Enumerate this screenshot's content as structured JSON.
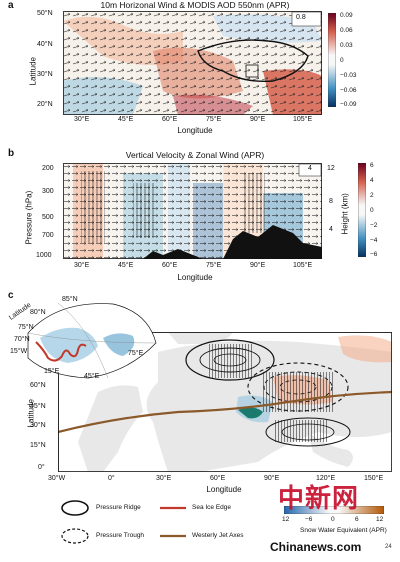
{
  "panel_a": {
    "label": "a",
    "title": "10m Horizonal Wind & MODIS AOD 550nm (APR)",
    "ylabel": "Latitude",
    "xlabel": "Longitude",
    "yticks": [
      "50°N",
      "40°N",
      "30°N",
      "20°N"
    ],
    "xticks": [
      "30°E",
      "45°E",
      "60°E",
      "75°E",
      "90°E",
      "105°E"
    ],
    "ref_vector": "0.8",
    "colorbar": [
      "0.09",
      "0.06",
      "0.03",
      "0",
      "−0.03",
      "−0.06",
      "−0.09"
    ]
  },
  "panel_b": {
    "label": "b",
    "title": "Vertical Velocity & Zonal Wind (APR)",
    "ylabel": "Pressure (hPa)",
    "y2label": "Height (km)",
    "xlabel": "Longitude",
    "yticks": [
      "200",
      "300",
      "500",
      "700",
      "1000"
    ],
    "y2ticks": [
      "12",
      "8",
      "4"
    ],
    "xticks": [
      "30°E",
      "45°E",
      "60°E",
      "75°E",
      "90°E",
      "105°E"
    ],
    "ref_vector": "4",
    "colorbar": [
      "6",
      "4",
      "2",
      "0",
      "−2",
      "−4",
      "−6"
    ]
  },
  "panel_c": {
    "label": "c",
    "ylabel": "Latitude",
    "xlabel": "Longitude",
    "yticks": [
      "60°N",
      "45°N",
      "30°N",
      "15°N",
      "0°"
    ],
    "xticks": [
      "30°W",
      "0°",
      "30°E",
      "60°E",
      "90°E",
      "120°E",
      "150°E"
    ],
    "inset": {
      "latitude_label": "Latitude",
      "lat_ticks": [
        "85°N",
        "80°N",
        "75°N",
        "70°N"
      ],
      "lon_ticks": [
        "15°W",
        "15°E",
        "45°E",
        "75°E"
      ]
    },
    "legend": {
      "pressure_ridge": "Pressure Ridge",
      "pressure_trough": "Pressure Trough",
      "sea_ice_edge": "Sea Ice Edge",
      "westerly_jet_axes": "Westerly Jet Axes",
      "swe_label": "Snow Water Equivalent (APR)",
      "swe_ticks": [
        "12",
        "−6",
        "0",
        "6",
        "12"
      ]
    }
  },
  "watermark": {
    "chinese": "中新网",
    "url": "Chinanews.com",
    "suffix": "24"
  },
  "colors": {
    "red": "#b2182b",
    "blue": "#2166ac",
    "sea_ice": "#c0392b",
    "jet": "#8b5a2b",
    "watermark": "#c8102e"
  }
}
